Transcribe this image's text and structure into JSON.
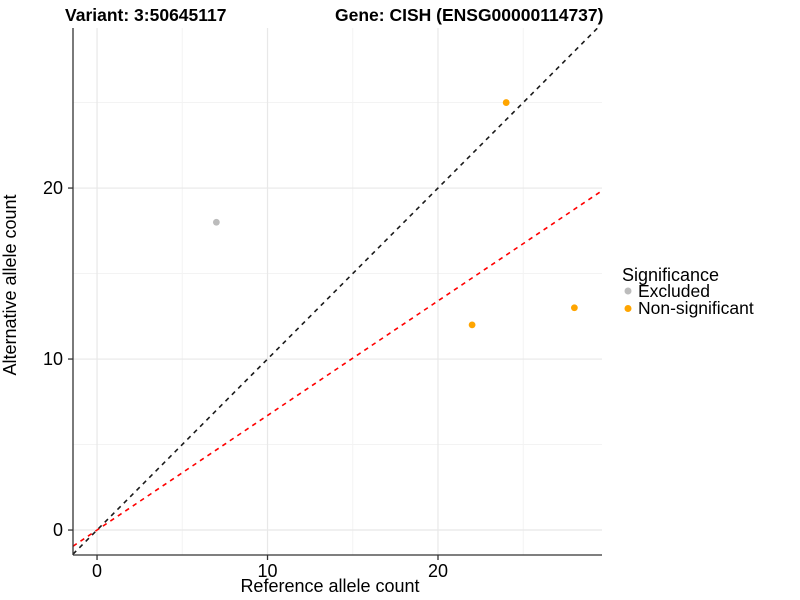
{
  "title": {
    "left": "Variant: 3:50645117",
    "right": "Gene: CISH (ENSG00000114737)"
  },
  "colors": {
    "excluded": "#bcbcbc",
    "non_significant": "#FFA500",
    "identity_line": "#1a1a1a",
    "expected_ratio_line": "#FF0000",
    "grid_major": "#e8e8e8",
    "grid_minor": "#f3f3f3",
    "axis_line": "#333333",
    "text": "#000000",
    "background": "#ffffff"
  },
  "legend": {
    "title": "Significance",
    "items": [
      {
        "label": "Excluded",
        "color": "#bcbcbc"
      },
      {
        "label": "Non-significant",
        "color": "#FFA500"
      }
    ]
  },
  "chart_data": {
    "type": "scatter",
    "title": "Variant: 3:50645117   Gene: CISH (ENSG00000114737)",
    "xlabel": "Reference allele count",
    "ylabel": "Alternative allele count",
    "xlim": [
      -1.41,
      29.62
    ],
    "ylim": [
      -1.46,
      29.36
    ],
    "x_ticks": [
      0,
      10,
      20
    ],
    "y_ticks": [
      0,
      10,
      20
    ],
    "x_minor_ticks": [
      5,
      15,
      25
    ],
    "y_minor_ticks": [
      5,
      15,
      25
    ],
    "grid": true,
    "legend_position": "right",
    "legend_title": "Significance",
    "series": [
      {
        "name": "Excluded",
        "color": "#bcbcbc",
        "points": [
          [
            7,
            18
          ]
        ]
      },
      {
        "name": "Non-significant",
        "color": "#FFA500",
        "points": [
          [
            24,
            25
          ],
          [
            22,
            12
          ],
          [
            28,
            13
          ]
        ]
      }
    ],
    "lines": [
      {
        "name": "identity",
        "slope": 1.0,
        "intercept": 0,
        "color": "#1a1a1a",
        "style": "dashed"
      },
      {
        "name": "expected-ratio",
        "slope": 0.67,
        "intercept": 0,
        "color": "#FF0000",
        "style": "dashed"
      }
    ]
  }
}
